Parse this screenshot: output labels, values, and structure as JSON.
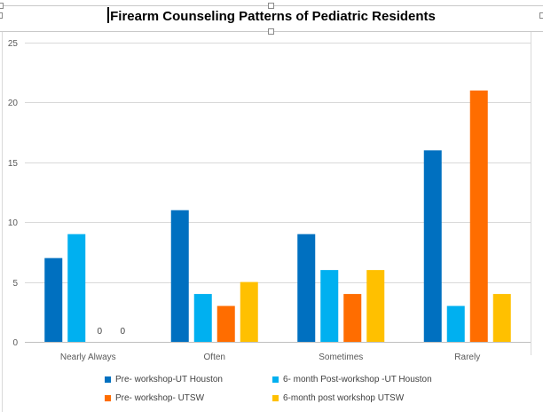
{
  "chart_data": {
    "type": "bar",
    "title": "Firearm Counseling Patterns of Pediatric Residents",
    "xlabel": "",
    "ylabel": "",
    "categories": [
      "Nearly Always",
      "Often",
      "Sometimes",
      "Rarely"
    ],
    "ylim": [
      0,
      25
    ],
    "yticks": [
      0,
      5,
      10,
      15,
      20,
      25
    ],
    "grid": true,
    "legend_position": "bottom",
    "series": [
      {
        "name": "Pre- workshop-UT Houston",
        "color": "#0070c0",
        "values": [
          7,
          11,
          9,
          16
        ]
      },
      {
        "name": "6- month Post-workshop -UT Houston",
        "color": "#00b0f0",
        "values": [
          9,
          4,
          6,
          3
        ]
      },
      {
        "name": "Pre- workshop- UTSW",
        "color": "#ff6d00",
        "values": [
          0,
          3,
          4,
          21
        ]
      },
      {
        "name": "6-month post workshop UTSW",
        "color": "#ffc000",
        "values": [
          0,
          5,
          6,
          4
        ]
      }
    ],
    "data_labels": [
      {
        "series": 2,
        "category": 0,
        "text": "0"
      },
      {
        "series": 3,
        "category": 0,
        "text": "0"
      }
    ]
  }
}
